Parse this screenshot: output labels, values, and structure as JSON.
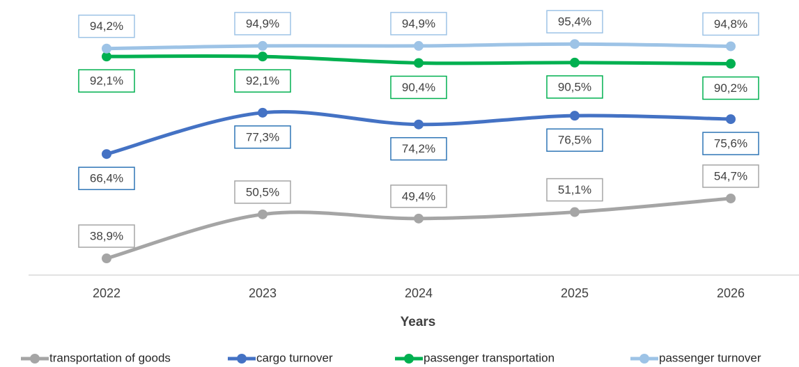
{
  "chart_data": {
    "type": "line",
    "x_label": "Years",
    "categories": [
      "2022",
      "2023",
      "2024",
      "2025",
      "2026"
    ],
    "ylim": [
      34.5,
      107
    ],
    "series": [
      {
        "name": "transportation of goods",
        "color": "#a5a5a5",
        "values": [
          38.9,
          50.5,
          49.4,
          51.1,
          54.7
        ],
        "value_labels": [
          "38,9%",
          "50,5%",
          "49,4%",
          "51,1%",
          "54,7%"
        ]
      },
      {
        "name": "cargo turnover",
        "color": "#4472c4",
        "values": [
          66.4,
          77.3,
          74.2,
          76.5,
          75.6
        ],
        "value_labels": [
          "66,4%",
          "77,3%",
          "74,2%",
          "76,5%",
          "75,6%"
        ]
      },
      {
        "name": "passenger transportation",
        "color": "#00b050",
        "values": [
          92.1,
          92.1,
          90.4,
          90.5,
          90.2
        ],
        "value_labels": [
          "92,1%",
          "92,1%",
          "90,4%",
          "90,5%",
          "90,2%"
        ]
      },
      {
        "name": "passenger turnover",
        "color": "#9dc3e6",
        "values": [
          94.2,
          94.9,
          94.9,
          95.4,
          94.8
        ],
        "value_labels": [
          "94,2%",
          "94,9%",
          "94,9%",
          "95,4%",
          "94,8%"
        ]
      }
    ]
  }
}
